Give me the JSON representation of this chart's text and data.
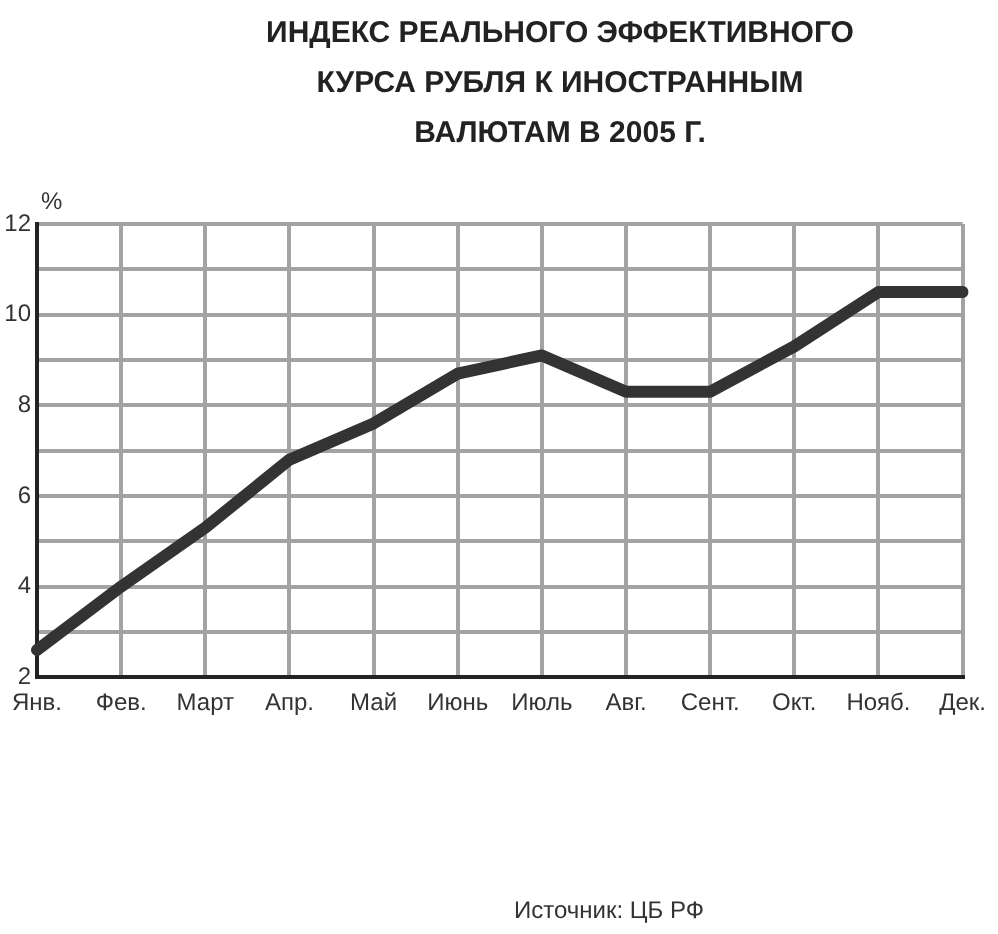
{
  "chart_data": {
    "type": "line",
    "title": "ИНДЕКС РЕАЛЬНОГО ЭФФЕКТИВНОГО КУРСА РУБЛЯ К ИНОСТРАННЫМ ВАЛЮТАМ В 2005 Г.",
    "ylabel": "%",
    "annotations": [
      "Источник: ЦБ РФ"
    ],
    "categories": [
      "Янв.",
      "Фев.",
      "Март",
      "Апр.",
      "Май",
      "Июнь",
      "Июль",
      "Авг.",
      "Сент.",
      "Окт.",
      "Нояб.",
      "Дек."
    ],
    "series": [
      {
        "color": "#333333",
        "values": [
          2.6,
          4.0,
          5.3,
          6.8,
          7.6,
          8.7,
          9.1,
          8.3,
          8.3,
          9.3,
          10.5,
          10.5
        ]
      }
    ],
    "ylim": [
      2,
      12
    ],
    "yticks": [
      2,
      {
        "value": 3,
        "label": null
      },
      4,
      {
        "value": 5,
        "label": null
      },
      6,
      {
        "value": 7,
        "label": null
      },
      8,
      {
        "value": 9,
        "label": null
      },
      10,
      {
        "value": 11,
        "label": null
      },
      12
    ],
    "grid": true,
    "marker": "none",
    "line_style": "solid"
  }
}
